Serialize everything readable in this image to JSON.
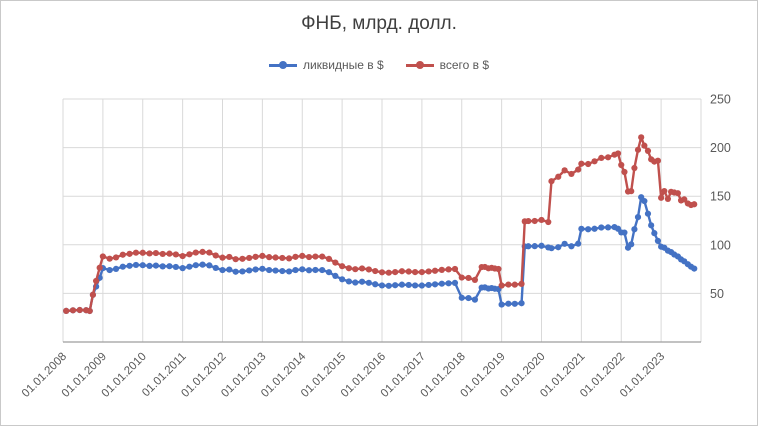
{
  "title": "ФНБ, млрд. долл.",
  "legend": [
    {
      "label": "ликвидные в $",
      "color": "#4472C4"
    },
    {
      "label": "всего в $",
      "color": "#C0504D"
    }
  ],
  "colors": {
    "title_text": "#3f3f3f",
    "axis_text": "#595959",
    "gridline": "#d9d9d9",
    "axis_line": "#9e9e9e",
    "background": "#ffffff",
    "series_liquid": "#4472C4",
    "series_total": "#C0504D"
  },
  "chart_data": {
    "type": "line",
    "title": "ФНБ, млрд. долл.",
    "xlabel": "",
    "ylabel": "",
    "xlim": [
      2008,
      2024
    ],
    "ylim": [
      0,
      250
    ],
    "y_ticks": [
      50,
      100,
      150,
      200,
      250
    ],
    "grid": true,
    "legend_position": "top",
    "x_tick_years": [
      2008,
      2009,
      2010,
      2011,
      2012,
      2013,
      2014,
      2015,
      2016,
      2017,
      2018,
      2019,
      2020,
      2021,
      2022,
      2023
    ],
    "x_tick_labels": [
      "01.01.2008",
      "01.01.2009",
      "01.01.2010",
      "01.01.2011",
      "01.01.2012",
      "01.01.2013",
      "01.01.2014",
      "01.01.2015",
      "01.01.2016",
      "01.01.2017",
      "01.01.2018",
      "01.01.2019",
      "01.01.2020",
      "01.01.2021",
      "01.01.2022",
      "01.01.2023"
    ],
    "x": [
      2008.08,
      2008.25,
      2008.42,
      2008.58,
      2008.67,
      2008.75,
      2008.83,
      2008.92,
      2009.0,
      2009.17,
      2009.33,
      2009.5,
      2009.67,
      2009.83,
      2010.0,
      2010.17,
      2010.33,
      2010.5,
      2010.67,
      2010.83,
      2011.0,
      2011.17,
      2011.33,
      2011.5,
      2011.67,
      2011.83,
      2012.0,
      2012.17,
      2012.33,
      2012.5,
      2012.67,
      2012.83,
      2013.0,
      2013.17,
      2013.33,
      2013.5,
      2013.67,
      2013.83,
      2014.0,
      2014.17,
      2014.33,
      2014.5,
      2014.67,
      2014.83,
      2015.0,
      2015.17,
      2015.33,
      2015.5,
      2015.67,
      2015.83,
      2016.0,
      2016.17,
      2016.33,
      2016.5,
      2016.67,
      2016.83,
      2017.0,
      2017.17,
      2017.33,
      2017.5,
      2017.67,
      2017.83,
      2018.0,
      2018.17,
      2018.33,
      2018.5,
      2018.58,
      2018.67,
      2018.75,
      2018.83,
      2018.92,
      2019.0,
      2019.17,
      2019.33,
      2019.5,
      2019.58,
      2019.67,
      2019.83,
      2020.0,
      2020.17,
      2020.25,
      2020.42,
      2020.58,
      2020.75,
      2020.92,
      2021.0,
      2021.17,
      2021.33,
      2021.5,
      2021.67,
      2021.83,
      2021.92,
      2022.0,
      2022.08,
      2022.17,
      2022.25,
      2022.33,
      2022.42,
      2022.5,
      2022.58,
      2022.67,
      2022.75,
      2022.83,
      2022.92,
      2023.0,
      2023.08,
      2023.17,
      2023.25,
      2023.33,
      2023.42,
      2023.5,
      2023.58,
      2023.67,
      2023.75,
      2023.83
    ],
    "series": [
      {
        "name": "ликвидные в $",
        "color": "#4472C4",
        "values": [
          32.0,
          32.6,
          32.9,
          32.7,
          31.9,
          48.6,
          57.0,
          66.0,
          76.0,
          74.0,
          75.2,
          77.5,
          78.4,
          79.3,
          79.0,
          78.3,
          78.6,
          77.8,
          78.0,
          77.2,
          76.0,
          77.5,
          79.0,
          79.6,
          78.8,
          76.2,
          74.0,
          74.5,
          72.3,
          72.6,
          73.6,
          74.6,
          75.3,
          74.0,
          73.5,
          73.0,
          72.6,
          74.0,
          74.8,
          73.8,
          74.1,
          74.0,
          71.8,
          68.0,
          64.5,
          62.3,
          61.2,
          62.0,
          60.9,
          59.4,
          58.2,
          57.8,
          58.4,
          59.0,
          58.7,
          58.2,
          58.1,
          58.7,
          59.3,
          60.0,
          60.4,
          60.8,
          45.5,
          45.2,
          43.6,
          56.0,
          56.2,
          55.0,
          55.5,
          54.8,
          54.4,
          38.5,
          39.4,
          39.3,
          39.9,
          98.3,
          98.5,
          98.6,
          99.0,
          97.3,
          96.5,
          97.5,
          101.0,
          98.5,
          101.2,
          116.4,
          116.0,
          116.5,
          117.8,
          117.9,
          118.2,
          116.5,
          112.7,
          112.6,
          97.0,
          100.5,
          116.0,
          128.5,
          149.0,
          145.0,
          132.0,
          120.0,
          112.0,
          104.0,
          98.0,
          97.0,
          94.0,
          92.5,
          90.0,
          88.0,
          85.0,
          83.0,
          80.0,
          77.5,
          75.5
        ]
      },
      {
        "name": "всего в $",
        "color": "#C0504D",
        "values": [
          32.0,
          32.6,
          32.9,
          32.7,
          31.9,
          48.6,
          62.8,
          76.4,
          88.0,
          85.7,
          87.0,
          89.8,
          90.7,
          91.9,
          91.8,
          91.1,
          91.5,
          90.6,
          90.9,
          90.1,
          88.4,
          90.2,
          92.0,
          92.7,
          92.0,
          89.0,
          86.8,
          87.5,
          85.2,
          85.6,
          86.5,
          87.6,
          88.6,
          87.3,
          86.9,
          86.5,
          86.0,
          87.6,
          88.6,
          87.4,
          87.9,
          87.9,
          85.5,
          81.7,
          78.0,
          75.9,
          74.9,
          75.7,
          74.6,
          73.0,
          71.7,
          71.3,
          71.9,
          72.8,
          72.5,
          71.9,
          71.9,
          72.6,
          73.3,
          74.2,
          74.7,
          75.1,
          66.3,
          65.9,
          63.9,
          77.1,
          77.2,
          75.8,
          76.3,
          75.6,
          75.1,
          58.1,
          59.1,
          59.0,
          59.8,
          124.1,
          124.4,
          124.5,
          125.6,
          123.4,
          165.4,
          170.0,
          176.6,
          172.9,
          177.4,
          183.4,
          183.1,
          185.9,
          189.4,
          190.0,
          192.7,
          194.0,
          182.1,
          174.9,
          154.8,
          155.2,
          179.0,
          197.7,
          210.6,
          202.0,
          196.6,
          187.9,
          185.6,
          186.5,
          148.4,
          155.3,
          147.2,
          154.5,
          153.8,
          153.1,
          145.6,
          146.7,
          142.5,
          140.9,
          141.7
        ]
      }
    ]
  }
}
